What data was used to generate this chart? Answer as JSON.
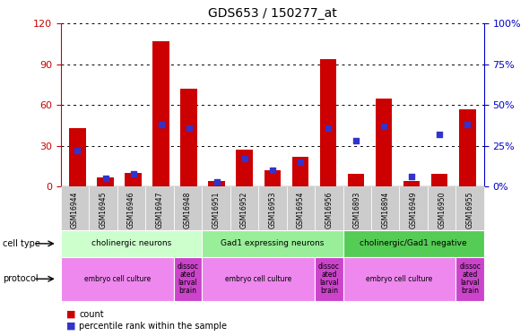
{
  "title": "GDS653 / 150277_at",
  "samples": [
    "GSM16944",
    "GSM16945",
    "GSM16946",
    "GSM16947",
    "GSM16948",
    "GSM16951",
    "GSM16952",
    "GSM16953",
    "GSM16954",
    "GSM16956",
    "GSM16893",
    "GSM16894",
    "GSM16949",
    "GSM16950",
    "GSM16955"
  ],
  "counts": [
    43,
    7,
    10,
    107,
    72,
    4,
    27,
    12,
    22,
    94,
    9,
    65,
    4,
    9,
    57
  ],
  "percentile_ranks": [
    22,
    5,
    8,
    38,
    36,
    3,
    17,
    10,
    15,
    36,
    28,
    37,
    6,
    32,
    38
  ],
  "ylim_left": [
    0,
    120
  ],
  "ylim_right": [
    0,
    100
  ],
  "yticks_left": [
    0,
    30,
    60,
    90,
    120
  ],
  "yticks_right": [
    0,
    25,
    50,
    75,
    100
  ],
  "cell_types": [
    {
      "label": "cholinergic neurons",
      "start": 0,
      "end": 5,
      "color": "#ccffcc"
    },
    {
      "label": "Gad1 expressing neurons",
      "start": 5,
      "end": 10,
      "color": "#99ee99"
    },
    {
      "label": "cholinergic/Gad1 negative",
      "start": 10,
      "end": 15,
      "color": "#55cc55"
    }
  ],
  "protocols": [
    {
      "label": "embryo cell culture",
      "start": 0,
      "end": 4,
      "color": "#ee88ee"
    },
    {
      "label": "dissoc\nated\nlarval\nbrain",
      "start": 4,
      "end": 5,
      "color": "#cc44cc"
    },
    {
      "label": "embryo cell culture",
      "start": 5,
      "end": 9,
      "color": "#ee88ee"
    },
    {
      "label": "dissoc\nated\nlarval\nbrain",
      "start": 9,
      "end": 10,
      "color": "#cc44cc"
    },
    {
      "label": "embryo cell culture",
      "start": 10,
      "end": 14,
      "color": "#ee88ee"
    },
    {
      "label": "dissoc\nated\nlarval\nbrain",
      "start": 14,
      "end": 15,
      "color": "#cc44cc"
    }
  ],
  "bar_color": "#cc0000",
  "dot_color": "#3333cc",
  "left_axis_color": "#cc0000",
  "right_axis_color": "#0000cc",
  "xtick_box_color": "#cccccc",
  "bg_color": "#ffffff"
}
